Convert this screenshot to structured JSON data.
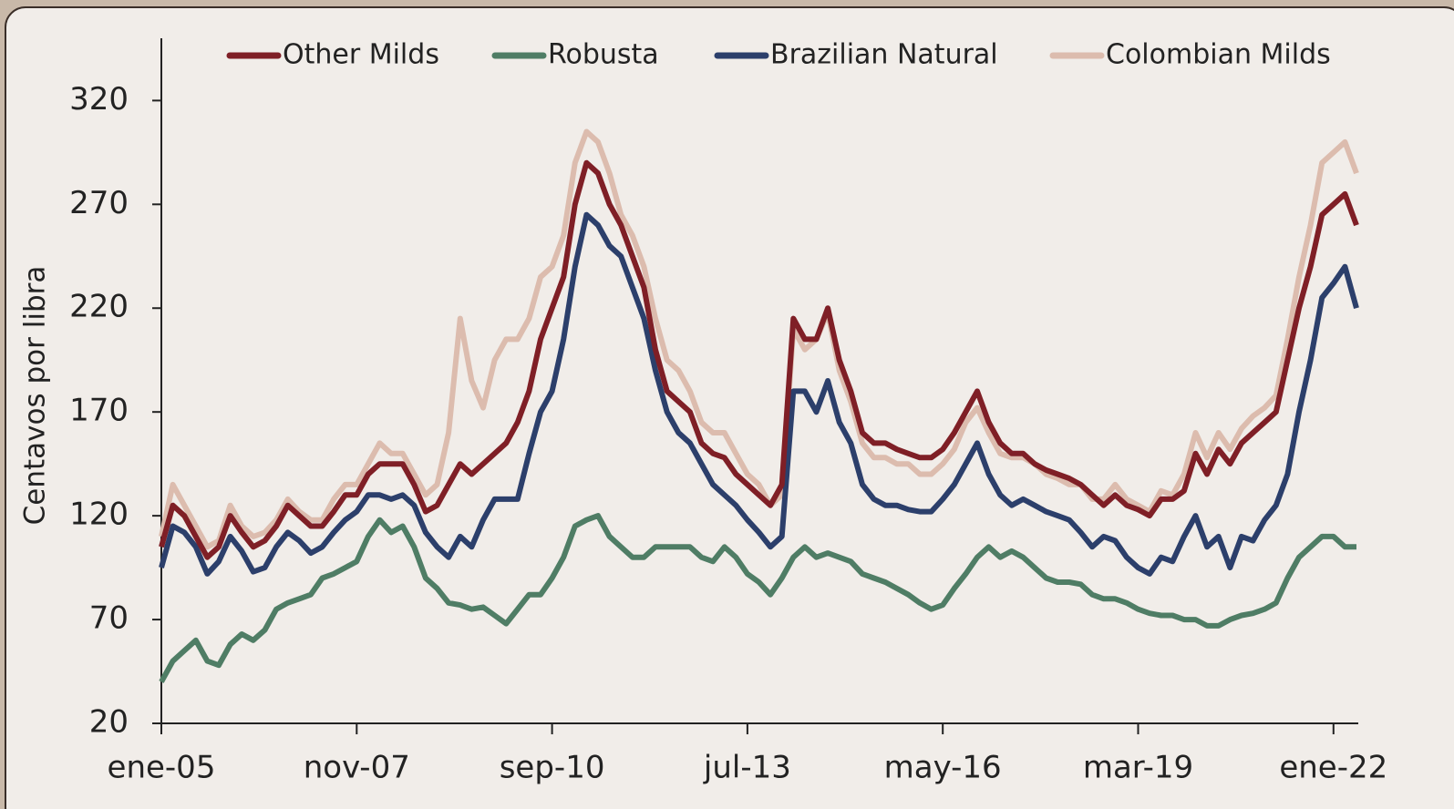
{
  "chart_data": {
    "type": "line",
    "y_label": "Centavos por libra",
    "categories": [
      "ene-05",
      null,
      null,
      null,
      null,
      null,
      null,
      null,
      null,
      null,
      null,
      null,
      null,
      null,
      null,
      null,
      null,
      "nov-07",
      null,
      null,
      null,
      null,
      null,
      null,
      null,
      null,
      null,
      null,
      null,
      null,
      null,
      null,
      null,
      null,
      "sep-10",
      null,
      null,
      null,
      null,
      null,
      null,
      null,
      null,
      null,
      null,
      null,
      null,
      null,
      null,
      null,
      null,
      "jul-13",
      null,
      null,
      null,
      null,
      null,
      null,
      null,
      null,
      null,
      null,
      null,
      null,
      null,
      null,
      null,
      null,
      "may-16",
      null,
      null,
      null,
      null,
      null,
      null,
      null,
      null,
      null,
      null,
      null,
      null,
      null,
      null,
      null,
      null,
      "mar-19",
      null,
      null,
      null,
      null,
      null,
      null,
      null,
      null,
      null,
      null,
      null,
      null,
      null,
      null,
      null,
      null,
      "ene-22",
      null,
      null
    ],
    "series": [
      {
        "name": "Other Milds",
        "color": "#7f1f26",
        "values": [
          105,
          125,
          120,
          110,
          100,
          105,
          120,
          112,
          105,
          108,
          115,
          125,
          120,
          115,
          115,
          122,
          130,
          130,
          140,
          145,
          145,
          145,
          135,
          122,
          125,
          135,
          145,
          140,
          145,
          150,
          155,
          165,
          180,
          205,
          220,
          235,
          270,
          290,
          285,
          270,
          260,
          245,
          230,
          200,
          180,
          175,
          170,
          155,
          150,
          148,
          140,
          135,
          130,
          125,
          135,
          215,
          205,
          205,
          220,
          195,
          180,
          160,
          155,
          155,
          152,
          150,
          148,
          148,
          152,
          160,
          170,
          180,
          165,
          155,
          150,
          150,
          145,
          142,
          140,
          138,
          135,
          130,
          125,
          130,
          125,
          123,
          120,
          128,
          128,
          132,
          150,
          140,
          152,
          145,
          155,
          160,
          165,
          170,
          195,
          220,
          240,
          265,
          270,
          275,
          260
        ]
      },
      {
        "name": "Robusta",
        "color": "#4f7d65",
        "values": [
          40,
          50,
          55,
          60,
          50,
          48,
          58,
          63,
          60,
          65,
          75,
          78,
          80,
          82,
          90,
          92,
          95,
          98,
          110,
          118,
          112,
          115,
          105,
          90,
          85,
          78,
          77,
          75,
          76,
          72,
          68,
          75,
          82,
          82,
          90,
          100,
          115,
          118,
          120,
          110,
          105,
          100,
          100,
          105,
          105,
          105,
          105,
          100,
          98,
          105,
          100,
          92,
          88,
          82,
          90,
          100,
          105,
          100,
          102,
          100,
          98,
          92,
          90,
          88,
          85,
          82,
          78,
          75,
          77,
          85,
          92,
          100,
          105,
          100,
          103,
          100,
          95,
          90,
          88,
          88,
          87,
          82,
          80,
          80,
          78,
          75,
          73,
          72,
          72,
          70,
          70,
          67,
          67,
          70,
          72,
          73,
          75,
          78,
          90,
          100,
          105,
          110,
          110,
          105,
          105
        ]
      },
      {
        "name": "Brazilian Natural",
        "color": "#2c3f6b",
        "values": [
          95,
          115,
          112,
          105,
          92,
          98,
          110,
          103,
          93,
          95,
          105,
          112,
          108,
          102,
          105,
          112,
          118,
          122,
          130,
          130,
          128,
          130,
          125,
          112,
          105,
          100,
          110,
          105,
          118,
          128,
          128,
          128,
          150,
          170,
          180,
          205,
          240,
          265,
          260,
          250,
          245,
          230,
          215,
          190,
          170,
          160,
          155,
          145,
          135,
          130,
          125,
          118,
          112,
          105,
          110,
          180,
          180,
          170,
          185,
          165,
          155,
          135,
          128,
          125,
          125,
          123,
          122,
          122,
          128,
          135,
          145,
          155,
          140,
          130,
          125,
          128,
          125,
          122,
          120,
          118,
          112,
          105,
          110,
          108,
          100,
          95,
          92,
          100,
          98,
          110,
          120,
          105,
          110,
          95,
          110,
          108,
          118,
          125,
          140,
          170,
          195,
          225,
          232,
          240,
          220
        ]
      },
      {
        "name": "Colombian Milds",
        "color": "#dcbcae",
        "values": [
          110,
          135,
          125,
          115,
          105,
          108,
          125,
          115,
          110,
          112,
          118,
          128,
          122,
          118,
          118,
          128,
          135,
          135,
          145,
          155,
          150,
          150,
          140,
          130,
          135,
          160,
          215,
          185,
          172,
          195,
          205,
          205,
          215,
          235,
          240,
          255,
          290,
          305,
          300,
          285,
          265,
          255,
          240,
          215,
          195,
          190,
          180,
          165,
          160,
          160,
          150,
          140,
          135,
          125,
          130,
          210,
          200,
          205,
          218,
          190,
          175,
          155,
          148,
          148,
          145,
          145,
          140,
          140,
          145,
          152,
          165,
          172,
          160,
          150,
          148,
          148,
          145,
          140,
          138,
          135,
          135,
          128,
          128,
          135,
          128,
          125,
          122,
          132,
          130,
          140,
          160,
          148,
          160,
          152,
          162,
          168,
          172,
          178,
          205,
          235,
          260,
          290,
          295,
          300,
          285
        ]
      }
    ],
    "ylim": [
      20,
      350
    ],
    "yticks": [
      20,
      70,
      120,
      170,
      220,
      270,
      320
    ],
    "grid": false,
    "legend": "top"
  }
}
